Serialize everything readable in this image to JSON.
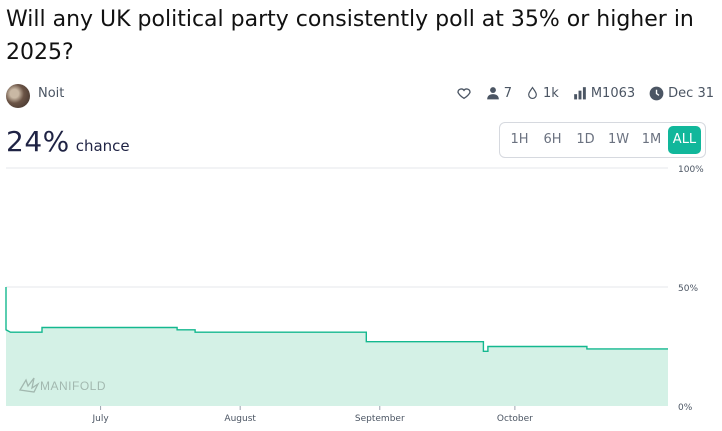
{
  "market": {
    "question": "Will any UK political party consistently poll at 35% or higher in 2025?",
    "author": "Noit",
    "stats": {
      "traders": "7",
      "liquidity": "1k",
      "volume": "M1063",
      "close_date": "Dec 31"
    },
    "probability": "24%",
    "probability_label": "chance"
  },
  "time_tabs": [
    {
      "label": "1H",
      "active": false
    },
    {
      "label": "6H",
      "active": false
    },
    {
      "label": "1D",
      "active": false
    },
    {
      "label": "1W",
      "active": false
    },
    {
      "label": "1M",
      "active": false
    },
    {
      "label": "ALL",
      "active": true
    }
  ],
  "colors": {
    "accent": "#11b79b",
    "line": "#14b88f",
    "fill": "#d4f1e6"
  },
  "watermark": "MANIFOLD",
  "chart_data": {
    "type": "area",
    "x_ticks": [
      "July",
      "August",
      "September",
      "October"
    ],
    "y_ticks": [
      "100%",
      "50%",
      "0%"
    ],
    "ylim": [
      0,
      100
    ],
    "grid": true,
    "series": [
      {
        "points": [
          [
            "2025-06-10",
            50
          ],
          [
            "2025-06-10",
            32
          ],
          [
            "2025-06-11",
            31
          ],
          [
            "2025-06-18",
            31
          ],
          [
            "2025-06-18",
            33
          ],
          [
            "2025-07-18",
            33
          ],
          [
            "2025-07-18",
            32
          ],
          [
            "2025-07-22",
            32
          ],
          [
            "2025-07-22",
            31
          ],
          [
            "2025-08-29",
            31
          ],
          [
            "2025-08-29",
            27
          ],
          [
            "2025-09-24",
            27
          ],
          [
            "2025-09-24",
            23
          ],
          [
            "2025-09-25",
            23
          ],
          [
            "2025-09-25",
            25
          ],
          [
            "2025-10-17",
            25
          ],
          [
            "2025-10-17",
            24
          ],
          [
            "2025-11-04",
            24
          ]
        ]
      }
    ]
  }
}
